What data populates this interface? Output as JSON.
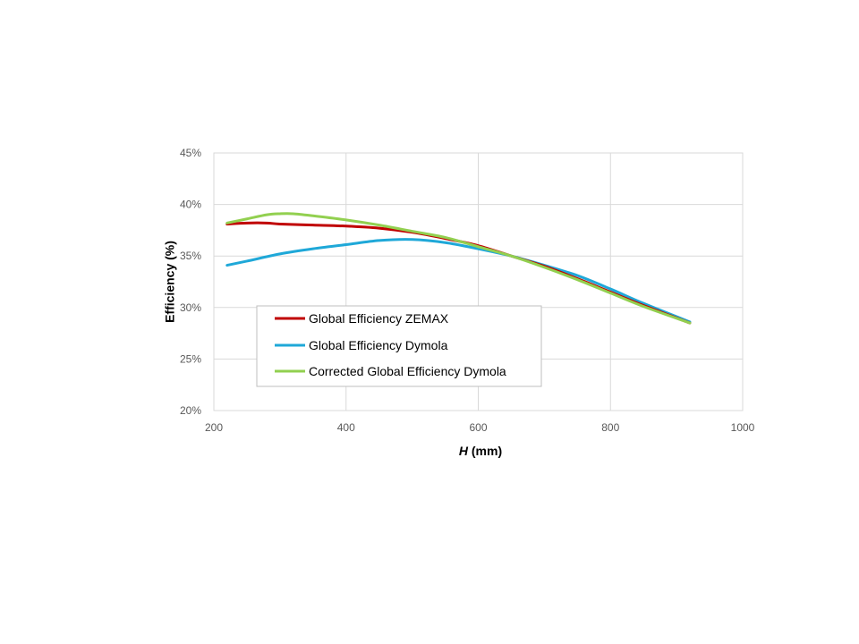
{
  "chart_data": {
    "type": "line",
    "title": "",
    "xlabel": "H",
    "xlabel_unit": " (mm)",
    "ylabel": "Efficiency (%)",
    "xlim": [
      200,
      1000
    ],
    "ylim": [
      0.2,
      0.45
    ],
    "x_ticks": [
      200,
      400,
      600,
      800,
      1000
    ],
    "x_tick_labels": [
      "200",
      "400",
      "600",
      "800",
      "1000"
    ],
    "y_ticks": [
      0.2,
      0.25,
      0.3,
      0.35,
      0.4,
      0.45
    ],
    "y_tick_labels": [
      "20%",
      "25%",
      "30%",
      "35%",
      "40%",
      "45%"
    ],
    "grid": true,
    "legend_position": "inside-lower-left",
    "series": [
      {
        "name": "Global Efficiency ZEMAX",
        "color": "#c00000",
        "x": [
          220,
          250,
          280,
          300,
          350,
          400,
          450,
          500,
          550,
          600,
          650,
          700,
          750,
          800,
          850,
          920
        ],
        "y": [
          0.381,
          0.382,
          0.382,
          0.381,
          0.38,
          0.379,
          0.377,
          0.373,
          0.367,
          0.36,
          0.35,
          0.34,
          0.328,
          0.315,
          0.302,
          0.285
        ]
      },
      {
        "name": "Global Efficiency Dymola",
        "color": "#1fa8d8",
        "x": [
          220,
          250,
          300,
          350,
          400,
          450,
          500,
          550,
          600,
          650,
          700,
          750,
          800,
          850,
          920
        ],
        "y": [
          0.341,
          0.345,
          0.352,
          0.357,
          0.361,
          0.365,
          0.366,
          0.363,
          0.357,
          0.35,
          0.341,
          0.331,
          0.318,
          0.304,
          0.286
        ]
      },
      {
        "name": "Corrected Global Efficiency Dymola",
        "color": "#92d050",
        "x": [
          220,
          250,
          280,
          300,
          320,
          350,
          400,
          450,
          500,
          550,
          600,
          650,
          700,
          750,
          800,
          850,
          920
        ],
        "y": [
          0.382,
          0.386,
          0.39,
          0.391,
          0.391,
          0.389,
          0.385,
          0.38,
          0.374,
          0.368,
          0.359,
          0.35,
          0.339,
          0.327,
          0.314,
          0.301,
          0.285
        ]
      }
    ]
  }
}
